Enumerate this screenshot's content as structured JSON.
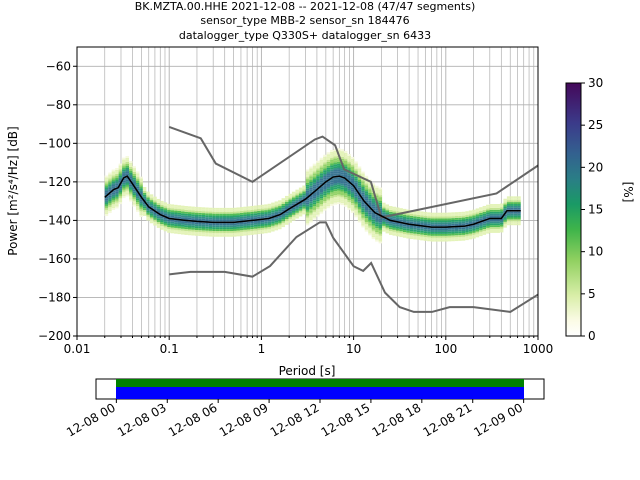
{
  "chart_data": {
    "type": "heatmap",
    "title_lines": [
      "BK.MZTA.00.HHE   2021-12-08 -- 2021-12-08  (47/47 segments)",
      "sensor_type MBB-2 sensor_sn 184476",
      "datalogger_type Q330S+ datalogger_sn 6433"
    ],
    "xlabel": "Period [s]",
    "ylabel": "Power [m²/s⁴/Hz] [dB]",
    "xscale": "log",
    "xlim": [
      0.01,
      1000
    ],
    "ylim": [
      -200,
      -50
    ],
    "grid": true,
    "x_ticks": [
      {
        "v": 0.01,
        "label": "0.01"
      },
      {
        "v": 0.1,
        "label": "0.1"
      },
      {
        "v": 1,
        "label": "1"
      },
      {
        "v": 10,
        "label": "10"
      },
      {
        "v": 100,
        "label": "100"
      },
      {
        "v": 1000,
        "label": "1000"
      }
    ],
    "y_ticks": [
      {
        "v": -60,
        "label": "−60"
      },
      {
        "v": -80,
        "label": "−80"
      },
      {
        "v": -100,
        "label": "−100"
      },
      {
        "v": -120,
        "label": "−120"
      },
      {
        "v": -140,
        "label": "−140"
      },
      {
        "v": -160,
        "label": "−160"
      },
      {
        "v": -180,
        "label": "−180"
      },
      {
        "v": -200,
        "label": "−200"
      }
    ],
    "model_lines": {
      "high": [
        [
          0.1,
          -91.5
        ],
        [
          0.22,
          -97.4
        ],
        [
          0.32,
          -110.5
        ],
        [
          0.8,
          -120
        ],
        [
          3.8,
          -98
        ],
        [
          4.6,
          -96.5
        ],
        [
          6.3,
          -101
        ],
        [
          7.9,
          -113.5
        ],
        [
          15.4,
          -120
        ],
        [
          20,
          -138.5
        ],
        [
          354.8,
          -126
        ],
        [
          1000,
          -111.5
        ]
      ],
      "low": [
        [
          0.1,
          -168
        ],
        [
          0.17,
          -166.7
        ],
        [
          0.4,
          -166.7
        ],
        [
          0.8,
          -169.2
        ],
        [
          1.24,
          -163.7
        ],
        [
          2.4,
          -148.6
        ],
        [
          4.3,
          -141
        ],
        [
          5,
          -141
        ],
        [
          6,
          -149
        ],
        [
          10,
          -163.8
        ],
        [
          12.7,
          -166.2
        ],
        [
          15.5,
          -162.1
        ],
        [
          21.9,
          -177.5
        ],
        [
          31.6,
          -185
        ],
        [
          45,
          -187.5
        ],
        [
          70.8,
          -187.5
        ],
        [
          110,
          -185
        ],
        [
          200,
          -185
        ],
        [
          500,
          -187.5
        ],
        [
          1000,
          -178.5
        ]
      ]
    },
    "median": [
      [
        0.02,
        -128
      ],
      [
        0.025,
        -124
      ],
      [
        0.028,
        -123
      ],
      [
        0.032,
        -118
      ],
      [
        0.035,
        -117
      ],
      [
        0.04,
        -121
      ],
      [
        0.05,
        -128
      ],
      [
        0.06,
        -133
      ],
      [
        0.08,
        -137
      ],
      [
        0.1,
        -139
      ],
      [
        0.15,
        -140
      ],
      [
        0.2,
        -140.5
      ],
      [
        0.3,
        -141
      ],
      [
        0.5,
        -141
      ],
      [
        0.8,
        -140
      ],
      [
        1.2,
        -139
      ],
      [
        1.6,
        -137
      ],
      [
        2,
        -134
      ],
      [
        3,
        -129
      ],
      [
        4,
        -124
      ],
      [
        5,
        -120
      ],
      [
        6,
        -117.5
      ],
      [
        7,
        -117
      ],
      [
        8,
        -118
      ],
      [
        10,
        -122
      ],
      [
        13,
        -130
      ],
      [
        17,
        -136
      ],
      [
        25,
        -140
      ],
      [
        40,
        -142
      ],
      [
        70,
        -143.5
      ],
      [
        100,
        -143.5
      ],
      [
        160,
        -143
      ],
      [
        200,
        -142
      ],
      [
        300,
        -139
      ],
      [
        400,
        -139
      ],
      [
        460,
        -135
      ],
      [
        650,
        -135
      ]
    ],
    "colorbar": {
      "label": "[%]",
      "range": [
        0,
        30
      ],
      "ticks": [
        "0",
        "5",
        "10",
        "15",
        "20",
        "25",
        "30"
      ]
    },
    "coverage": {
      "x_ticks": [
        "12-08 00",
        "12-08 03",
        "12-08 06",
        "12-08 09",
        "12-08 12",
        "12-08 15",
        "12-08 18",
        "12-08 21",
        "12-09 00"
      ],
      "x_hours": [
        0,
        3,
        6,
        9,
        12,
        15,
        18,
        21,
        24
      ],
      "range_hours": [
        -1.2,
        25.2
      ],
      "colors": {
        "data": "#0000ff",
        "gaps_free": "#008000"
      }
    }
  }
}
